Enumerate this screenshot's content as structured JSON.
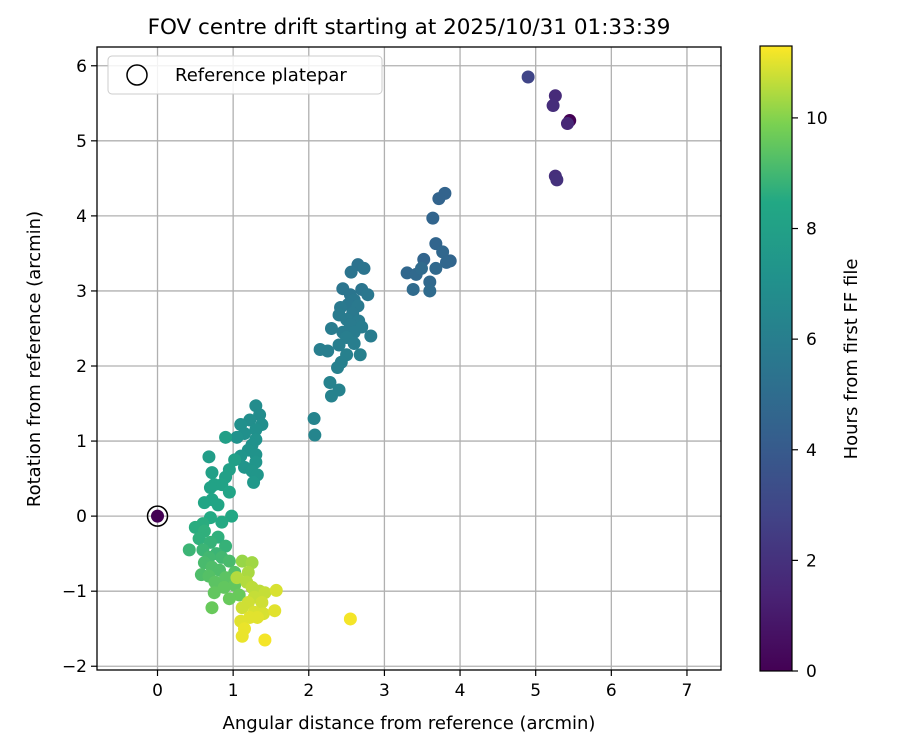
{
  "chart_data": {
    "type": "scatter",
    "title": "FOV centre drift starting at 2025/10/31 01:33:39",
    "xlabel": "Angular distance from reference (arcmin)",
    "ylabel": "Rotation from reference (arcmin)",
    "xlim": [
      -0.8,
      7.45
    ],
    "ylim": [
      -2.05,
      6.25
    ],
    "xticks": [
      0,
      1,
      2,
      3,
      4,
      5,
      6,
      7
    ],
    "yticks": [
      -2,
      -1,
      0,
      1,
      2,
      3,
      4,
      5,
      6
    ],
    "grid": true,
    "legend": {
      "location": "top-left",
      "entries": [
        {
          "label": "Reference platepar",
          "marker": "open-circle"
        }
      ]
    },
    "reference_point": {
      "x": 0.0,
      "y": 0.0,
      "t": 0.0
    },
    "colorbar": {
      "label": "Hours from first FF file",
      "min": 0,
      "max": 11.3,
      "ticks": [
        0,
        2,
        4,
        6,
        8,
        10
      ],
      "colormap": "viridis"
    },
    "point_fields": [
      "x",
      "y",
      "hours"
    ],
    "points": [
      [
        5.45,
        5.27,
        0.0
      ],
      [
        5.42,
        5.23,
        1.6
      ],
      [
        5.26,
        5.6,
        1.7
      ],
      [
        5.23,
        5.47,
        1.8
      ],
      [
        5.26,
        4.53,
        1.9
      ],
      [
        5.28,
        4.48,
        2.0
      ],
      [
        4.9,
        5.85,
        2.9
      ],
      [
        3.8,
        4.3,
        4.5
      ],
      [
        3.72,
        4.23,
        4.5
      ],
      [
        3.64,
        3.97,
        4.6
      ],
      [
        3.68,
        3.63,
        4.6
      ],
      [
        3.77,
        3.52,
        4.7
      ],
      [
        3.87,
        3.4,
        4.6
      ],
      [
        3.82,
        3.38,
        4.7
      ],
      [
        3.52,
        3.42,
        4.6
      ],
      [
        3.3,
        3.24,
        4.7
      ],
      [
        3.42,
        3.22,
        4.8
      ],
      [
        3.6,
        3.12,
        4.8
      ],
      [
        3.38,
        3.02,
        4.9
      ],
      [
        3.6,
        3.0,
        4.9
      ],
      [
        3.68,
        3.3,
        4.8
      ],
      [
        3.49,
        3.3,
        4.9
      ],
      [
        2.65,
        3.35,
        5.3
      ],
      [
        2.73,
        3.3,
        5.4
      ],
      [
        2.56,
        3.25,
        5.4
      ],
      [
        2.45,
        3.03,
        5.5
      ],
      [
        2.55,
        2.95,
        5.5
      ],
      [
        2.7,
        3.02,
        5.5
      ],
      [
        2.78,
        2.95,
        5.6
      ],
      [
        2.6,
        2.88,
        5.6
      ],
      [
        2.52,
        2.82,
        5.6
      ],
      [
        2.42,
        2.78,
        5.7
      ],
      [
        2.65,
        2.8,
        5.7
      ],
      [
        2.58,
        2.7,
        5.7
      ],
      [
        2.4,
        2.68,
        5.8
      ],
      [
        2.5,
        2.62,
        5.8
      ],
      [
        2.66,
        2.6,
        5.8
      ],
      [
        2.55,
        2.55,
        5.8
      ],
      [
        2.7,
        2.52,
        5.9
      ],
      [
        2.6,
        2.45,
        5.9
      ],
      [
        2.45,
        2.45,
        5.9
      ],
      [
        2.3,
        2.5,
        5.9
      ],
      [
        2.82,
        2.4,
        5.9
      ],
      [
        2.5,
        2.38,
        6.0
      ],
      [
        2.6,
        2.3,
        6.0
      ],
      [
        2.4,
        2.28,
        6.0
      ],
      [
        2.15,
        2.22,
        6.0
      ],
      [
        2.25,
        2.2,
        6.0
      ],
      [
        2.5,
        2.15,
        6.1
      ],
      [
        2.68,
        2.15,
        6.1
      ],
      [
        2.43,
        2.05,
        6.1
      ],
      [
        2.38,
        1.98,
        6.1
      ],
      [
        2.28,
        1.78,
        6.2
      ],
      [
        2.4,
        1.68,
        6.2
      ],
      [
        2.3,
        1.6,
        6.2
      ],
      [
        2.07,
        1.3,
        6.3
      ],
      [
        2.08,
        1.08,
        6.4
      ],
      [
        1.3,
        1.47,
        6.8
      ],
      [
        1.35,
        1.35,
        6.8
      ],
      [
        1.38,
        1.22,
        6.9
      ],
      [
        1.22,
        1.28,
        6.9
      ],
      [
        1.1,
        1.22,
        7.0
      ],
      [
        1.3,
        1.15,
        7.0
      ],
      [
        1.15,
        1.1,
        7.0
      ],
      [
        1.05,
        1.05,
        7.1
      ],
      [
        1.3,
        1.02,
        7.1
      ],
      [
        1.25,
        0.95,
        7.1
      ],
      [
        1.2,
        0.88,
        7.2
      ],
      [
        1.3,
        0.82,
        7.2
      ],
      [
        1.1,
        0.8,
        7.3
      ],
      [
        1.3,
        0.72,
        7.3
      ],
      [
        1.15,
        0.65,
        7.3
      ],
      [
        1.25,
        0.6,
        7.4
      ],
      [
        1.32,
        0.55,
        7.4
      ],
      [
        1.27,
        0.45,
        7.5
      ],
      [
        0.9,
        1.05,
        7.9
      ],
      [
        1.02,
        0.75,
        7.9
      ],
      [
        0.68,
        0.79,
        7.8
      ],
      [
        0.95,
        0.62,
        8.0
      ],
      [
        0.72,
        0.58,
        8.0
      ],
      [
        0.9,
        0.52,
        8.0
      ],
      [
        0.85,
        0.42,
        8.1
      ],
      [
        0.75,
        0.42,
        8.1
      ],
      [
        0.7,
        0.38,
        8.1
      ],
      [
        0.95,
        0.32,
        8.2
      ],
      [
        0.72,
        0.22,
        8.2
      ],
      [
        0.62,
        0.18,
        8.3
      ],
      [
        0.8,
        0.15,
        8.3
      ],
      [
        0.98,
        0.0,
        8.4
      ],
      [
        0.85,
        -0.08,
        8.5
      ],
      [
        0.7,
        -0.02,
        8.5
      ],
      [
        0.6,
        -0.1,
        8.6
      ],
      [
        0.5,
        -0.15,
        8.6
      ],
      [
        0.62,
        -0.2,
        8.7
      ],
      [
        0.8,
        -0.28,
        8.7
      ],
      [
        0.55,
        -0.3,
        8.7
      ],
      [
        0.7,
        -0.35,
        8.8
      ],
      [
        0.9,
        -0.4,
        8.8
      ],
      [
        0.42,
        -0.45,
        8.9
      ],
      [
        0.6,
        -0.45,
        8.9
      ],
      [
        0.78,
        -0.5,
        8.9
      ],
      [
        0.68,
        -0.55,
        9.0
      ],
      [
        0.85,
        -0.55,
        9.0
      ],
      [
        0.62,
        -0.62,
        9.1
      ],
      [
        0.95,
        -0.6,
        9.1
      ],
      [
        0.72,
        -0.68,
        9.2
      ],
      [
        0.82,
        -0.72,
        9.2
      ],
      [
        0.58,
        -0.78,
        9.2
      ],
      [
        1.02,
        -0.75,
        9.3
      ],
      [
        0.68,
        -0.8,
        9.3
      ],
      [
        0.9,
        -0.82,
        9.4
      ],
      [
        0.76,
        -0.88,
        9.4
      ],
      [
        1.02,
        -0.92,
        9.5
      ],
      [
        0.88,
        -0.95,
        9.5
      ],
      [
        0.75,
        -1.02,
        9.5
      ],
      [
        1.08,
        -1.05,
        9.6
      ],
      [
        0.95,
        -1.1,
        9.6
      ],
      [
        0.72,
        -1.22,
        9.6
      ],
      [
        1.12,
        -0.6,
        10.2
      ],
      [
        1.25,
        -0.62,
        10.3
      ],
      [
        1.2,
        -0.75,
        10.4
      ],
      [
        1.05,
        -0.82,
        10.5
      ],
      [
        1.18,
        -0.88,
        10.5
      ],
      [
        1.25,
        -0.95,
        10.6
      ],
      [
        1.35,
        -1.0,
        10.6
      ],
      [
        1.42,
        -1.02,
        10.7
      ],
      [
        1.28,
        -1.08,
        10.7
      ],
      [
        1.38,
        -1.15,
        10.8
      ],
      [
        1.2,
        -1.15,
        10.8
      ],
      [
        1.12,
        -1.22,
        10.8
      ],
      [
        1.28,
        -1.28,
        10.9
      ],
      [
        1.4,
        -1.3,
        10.9
      ],
      [
        1.22,
        -1.35,
        11.0
      ],
      [
        1.32,
        -1.35,
        11.0
      ],
      [
        1.1,
        -1.4,
        11.0
      ],
      [
        1.15,
        -1.5,
        11.1
      ],
      [
        1.12,
        -1.6,
        11.1
      ],
      [
        1.55,
        -1.26,
        11.0
      ],
      [
        1.57,
        -0.99,
        10.9
      ],
      [
        1.42,
        -1.65,
        11.2
      ],
      [
        2.55,
        -1.37,
        11.2
      ]
    ]
  }
}
